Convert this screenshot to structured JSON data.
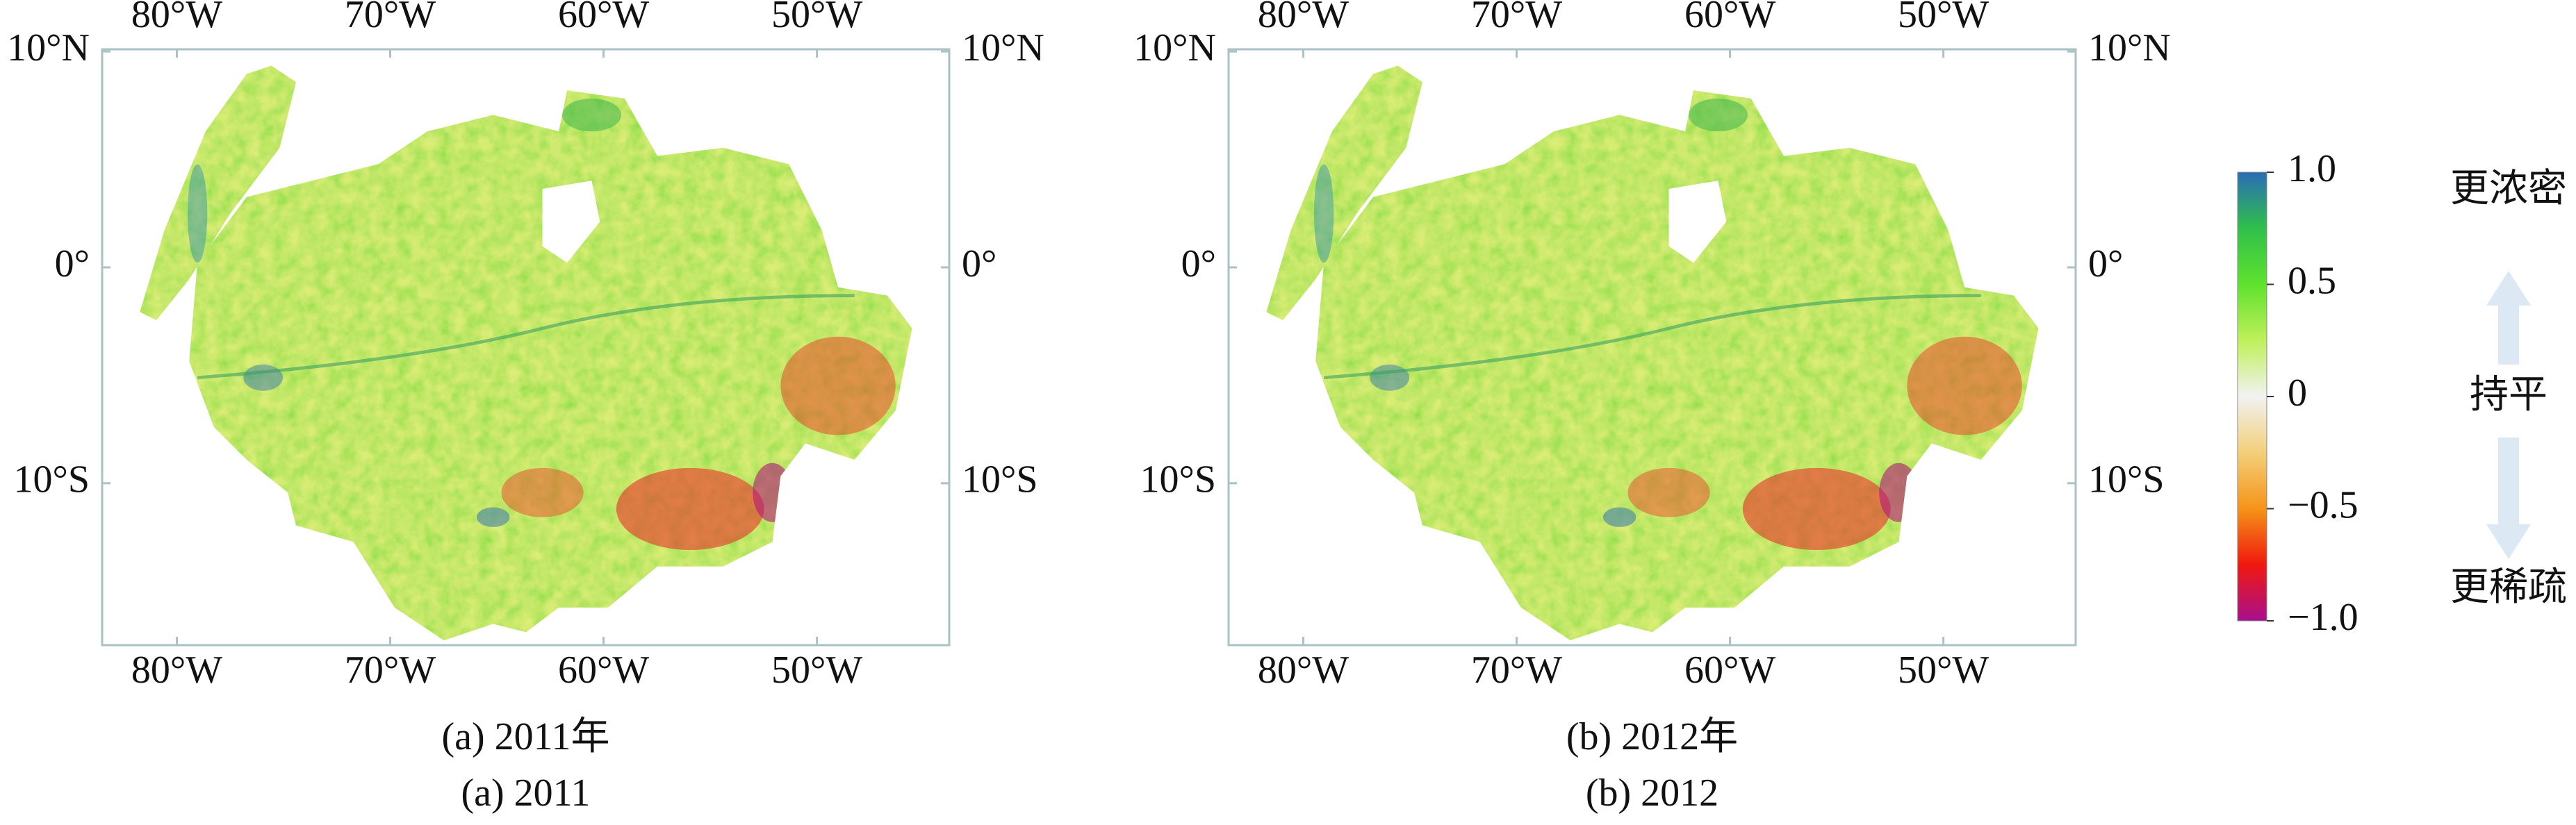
{
  "lon_range": [
    -83.5,
    -43.8
  ],
  "lat_range": [
    -17.5,
    10.1
  ],
  "lon_ticks": [
    {
      "value": -80,
      "label": "80°W"
    },
    {
      "value": -70,
      "label": "70°W"
    },
    {
      "value": -60,
      "label": "60°W"
    },
    {
      "value": -50,
      "label": "50°W"
    }
  ],
  "lat_ticks": [
    {
      "value": 10,
      "label": "10°N"
    },
    {
      "value": 0,
      "label": "0°"
    },
    {
      "value": -10,
      "label": "10°S"
    }
  ],
  "panels": [
    {
      "caption_cn": "(a) 2011年",
      "caption_en": "(a) 2011"
    },
    {
      "caption_cn": "(b) 2012年",
      "caption_en": "(b) 2012"
    }
  ],
  "colorbar": {
    "range": [
      -1,
      1
    ],
    "ticks": [
      {
        "value": 1,
        "label": "1.0"
      },
      0.5,
      0,
      {
        "value": -0.5,
        "label": "−0.5"
      },
      {
        "value": -1,
        "label": "−1.0"
      }
    ],
    "stops": [
      {
        "value": 1,
        "color": "#2a6cb8"
      },
      {
        "value": 0.75,
        "color": "#2fc04a"
      },
      {
        "value": 0.5,
        "color": "#5fe22e"
      },
      {
        "value": 0.25,
        "color": "#bff05a"
      },
      {
        "value": 0,
        "color": "#f2f2f2"
      },
      {
        "value": -0.25,
        "color": "#f3cf7a"
      },
      {
        "value": -0.5,
        "color": "#f59418"
      },
      {
        "value": -0.75,
        "color": "#f0180e"
      },
      {
        "value": -1,
        "color": "#a8108e"
      }
    ],
    "label_top": "更浓密",
    "label_middle": "持平",
    "label_bottom": "更稀疏"
  }
}
